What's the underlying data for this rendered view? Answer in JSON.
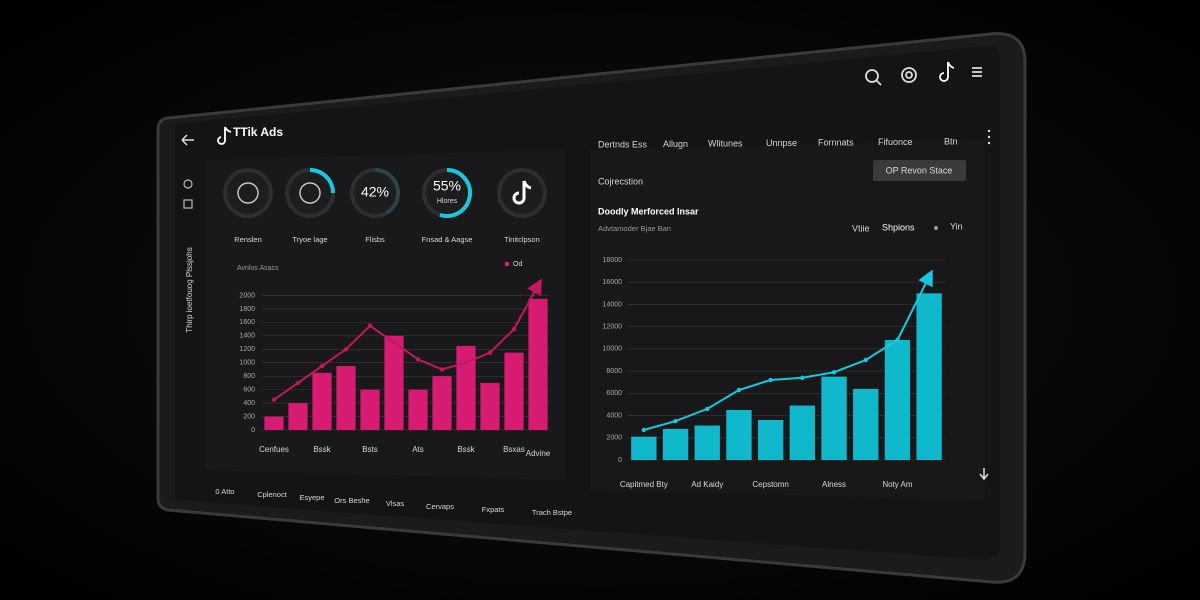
{
  "header": {
    "title": "TTik Ads"
  },
  "sidebar": {
    "vertical_label": "Thirp ioetfouog Plssjohs"
  },
  "top_nav": [
    "Dertnds Ess",
    "Allugn",
    "Wlitunes",
    "Unnpse",
    "Fornnats",
    "Fifuonce",
    "Btn"
  ],
  "button": "OP Revon Stace",
  "section_label": "Cojrecstion",
  "kpis": [
    {
      "label": "Renslen"
    },
    {
      "label": "Tryoe lage"
    },
    {
      "value": 42,
      "value_label": "42%",
      "label": "Flisbs"
    },
    {
      "value": 55,
      "value_label": "55%",
      "sub": "Hlores",
      "label": "Fnsad & Aagse"
    },
    {
      "label": "Tinitclpson"
    }
  ],
  "bottom_tabs": [
    "0 Atto",
    "Cplenoct",
    "Esyepe",
    "Ors Beshe",
    "Vlsas",
    "Cervaps",
    "Fxpats",
    "Trach Bstpe"
  ],
  "chart_data": [
    {
      "type": "bar",
      "subtitle": "Avnlos Asacs",
      "categories": [
        "Cenfues",
        null,
        "Bssk",
        null,
        "Bsts",
        null,
        "Ats",
        null,
        "Bssk",
        null,
        "Bsxas",
        "Advine"
      ],
      "series": [
        {
          "name": "Od",
          "color": "#d81b72",
          "values": [
            200,
            400,
            850,
            950,
            600,
            1400,
            600,
            800,
            1250,
            700,
            1150,
            1950
          ]
        },
        {
          "type": "line",
          "color": "#c2185b",
          "values": [
            450,
            700,
            950,
            1200,
            1550,
            1300,
            1050,
            900,
            1000,
            1150,
            1500,
            2150
          ]
        }
      ],
      "ylim": [
        0,
        2200
      ],
      "yticks": [
        0,
        200,
        400,
        600,
        800,
        1000,
        1200,
        1400,
        1600,
        1800,
        2000
      ],
      "grid": true
    },
    {
      "type": "bar",
      "title": "Doodly Merforced Insar",
      "subtitle": "Advtamoder Bjae Ban",
      "legend": [
        "Vtiie",
        "Shpions",
        "Yin"
      ],
      "categories": [
        "Capitmed Bty",
        null,
        "Ad Kaidy",
        null,
        "Cepstomn",
        null,
        "Alness",
        null,
        "Noty Am",
        null
      ],
      "series": [
        {
          "color": "#10b8cc",
          "values": [
            2100,
            2800,
            3100,
            4500,
            3600,
            4900,
            7500,
            6400,
            10800,
            15000
          ]
        },
        {
          "type": "line",
          "color": "#18c8dc",
          "values": [
            2700,
            3500,
            4600,
            6300,
            7200,
            7400,
            7900,
            9000,
            10800,
            16500
          ]
        }
      ],
      "ylim": [
        0,
        18000
      ],
      "yticks": [
        0,
        2000,
        4000,
        6000,
        8000,
        10000,
        12000,
        14000,
        16000,
        18000
      ],
      "grid": true
    }
  ]
}
